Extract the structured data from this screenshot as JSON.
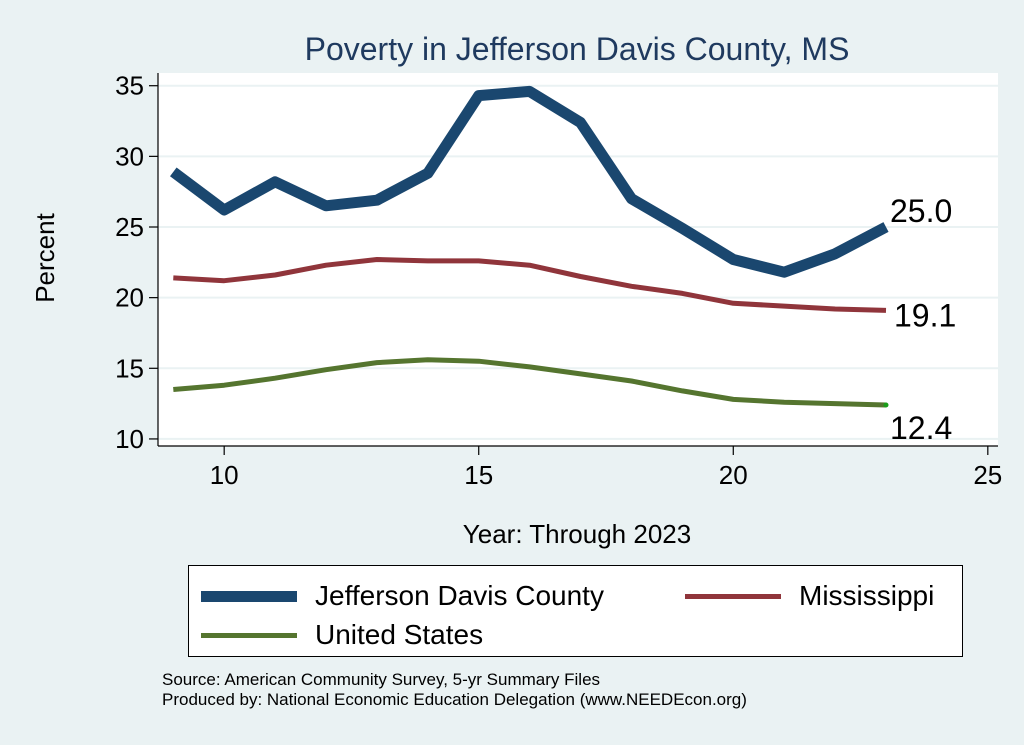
{
  "chart_data": {
    "type": "line",
    "title": "Poverty in Jefferson Davis County, MS",
    "xlabel": "Year: Through 2023",
    "ylabel": "Percent",
    "xlim": [
      8.7,
      25.2
    ],
    "ylim": [
      9.5,
      35.9
    ],
    "xticks": [
      10,
      15,
      20,
      25
    ],
    "yticks": [
      10,
      15,
      20,
      25,
      30,
      35
    ],
    "grid": true,
    "x": [
      9,
      10,
      11,
      12,
      13,
      14,
      15,
      16,
      17,
      18,
      19,
      20,
      21,
      22,
      23
    ],
    "series": [
      {
        "name": "Jefferson Davis County",
        "color": "#1a476f",
        "values": [
          28.9,
          26.2,
          28.2,
          26.5,
          26.9,
          28.8,
          34.3,
          34.6,
          32.4,
          27.0,
          24.9,
          22.7,
          21.8,
          23.1,
          25.0
        ],
        "end_label": "25.0"
      },
      {
        "name": "Mississippi",
        "color": "#90353b",
        "values": [
          21.4,
          21.2,
          21.6,
          22.3,
          22.7,
          22.6,
          22.6,
          22.3,
          21.5,
          20.8,
          20.3,
          19.6,
          19.4,
          19.2,
          19.1
        ],
        "end_label": "19.1"
      },
      {
        "name": "United States",
        "color": "#55752f",
        "values": [
          13.5,
          13.8,
          14.3,
          14.9,
          15.4,
          15.6,
          15.5,
          15.1,
          14.6,
          14.1,
          13.4,
          12.8,
          12.6,
          12.5,
          12.4
        ],
        "end_label": "12.4"
      }
    ],
    "legend": {
      "position": "bottom",
      "entries": [
        "Jefferson Davis County",
        "Mississippi",
        "United States"
      ]
    },
    "notes": [
      "Source: American Community Survey, 5-yr Summary Files",
      "Produced by: National Economic Education Delegation (www.NEEDEcon.org)"
    ]
  },
  "colors": {
    "background": "#eaf2f3",
    "plot_background": "#ffffff",
    "grid": "#eaf2f3",
    "title": "#1f3a5f"
  }
}
